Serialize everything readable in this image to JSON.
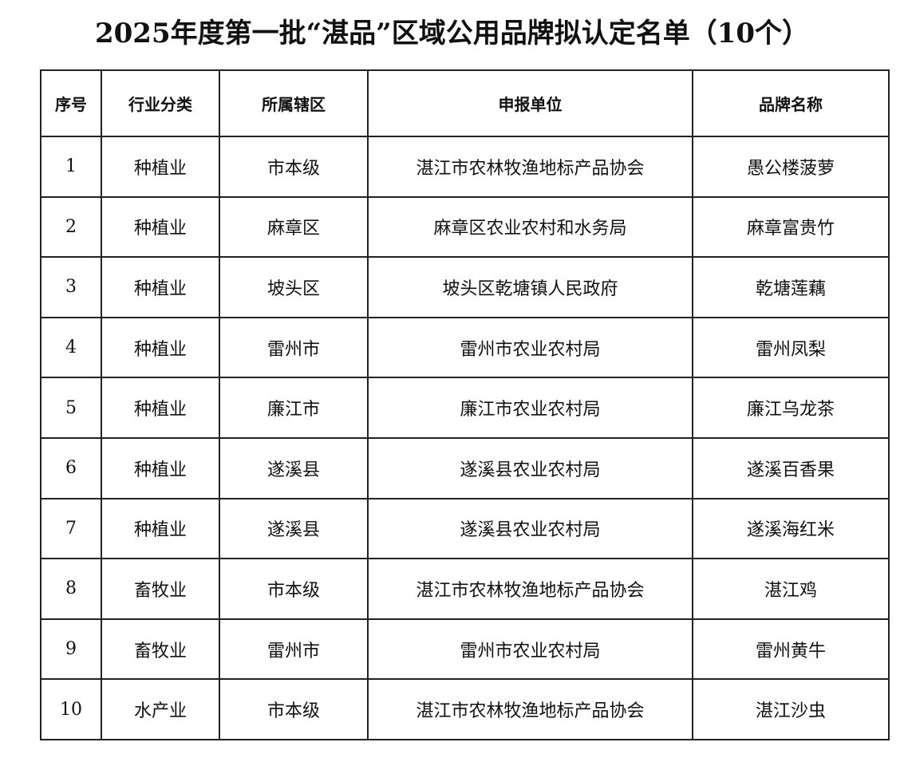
{
  "title": "2025年度第一批“湛品”区域公用品牌拟认定名单（10个）",
  "table": {
    "headers": [
      "序号",
      "行业分类",
      "所属辖区",
      "申报单位",
      "品牌名称"
    ],
    "rows": [
      [
        "1",
        "种植业",
        "市本级",
        "湛江市农林牧渔地标产品协会",
        "愚公楼菠萝"
      ],
      [
        "2",
        "种植业",
        "麻章区",
        "麻章区农业农村和水务局",
        "麻章富贵竹"
      ],
      [
        "3",
        "种植业",
        "坡头区",
        "坡头区乾塘镇人民政府",
        "乾塘莲藕"
      ],
      [
        "4",
        "种植业",
        "雷州市",
        "雷州市农业农村局",
        "雷州凤梨"
      ],
      [
        "5",
        "种植业",
        "廉江市",
        "廉江市农业农村局",
        "廉江乌龙茶"
      ],
      [
        "6",
        "种植业",
        "遂溪县",
        "遂溪县农业农村局",
        "遂溪百香果"
      ],
      [
        "7",
        "种植业",
        "遂溪县",
        "遂溪县农业农村局",
        "遂溪海红米"
      ],
      [
        "8",
        "畜牧业",
        "市本级",
        "湛江市农林牧渔地标产品协会",
        "湛江鸡"
      ],
      [
        "9",
        "畜牧业",
        "雷州市",
        "雷州市农业农村局",
        "雷州黄牛"
      ],
      [
        "10",
        "水产业",
        "市本级",
        "湛江市农林牧渔地标产品协会",
        "湛江沙虫"
      ]
    ]
  }
}
